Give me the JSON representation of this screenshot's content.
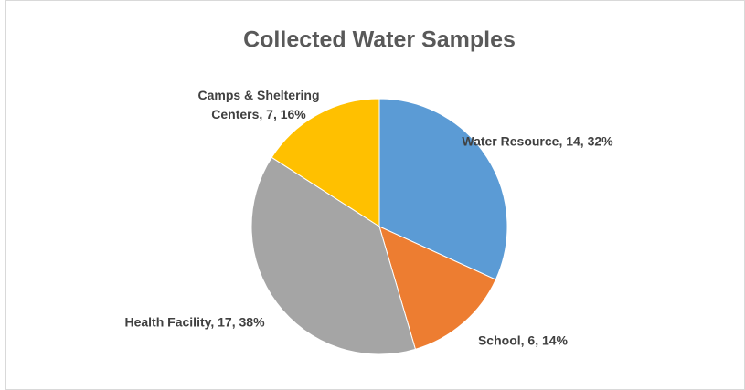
{
  "chart_data": {
    "type": "pie",
    "title": "Collected Water Samples",
    "values": [
      14,
      6,
      17,
      7
    ],
    "value_labels": [
      "Water Resource, 14, 32%",
      "School, 6, 14%",
      "Health Facility, 17, 38%",
      "Camps & Sheltering Centers, 7, 16%"
    ],
    "colors": [
      "#5b9bd5",
      "#ed7d31",
      "#a5a5a5",
      "#ffc000"
    ]
  }
}
